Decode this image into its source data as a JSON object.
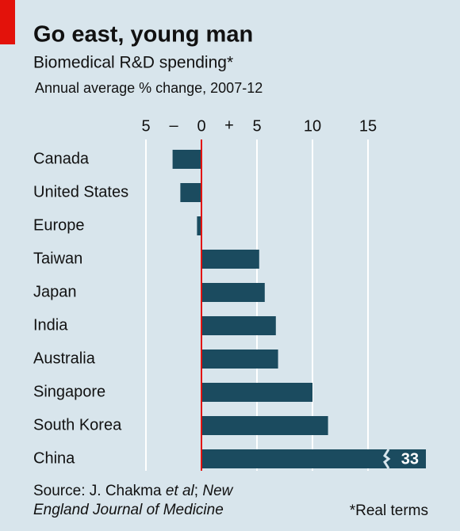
{
  "chart_data": {
    "type": "bar",
    "title": "Go east, young man",
    "subtitle": "Biomedical R&D spending*",
    "axis_label": "Annual average % change, 2007-12",
    "sign_labels": {
      "minus": "–",
      "plus": "+"
    },
    "categories": [
      "Canada",
      "United States",
      "Europe",
      "Taiwan",
      "Japan",
      "India",
      "Australia",
      "Singapore",
      "South Korea",
      "China"
    ],
    "values": [
      -2.6,
      -1.9,
      -0.4,
      5.2,
      5.7,
      6.7,
      6.9,
      10.0,
      11.4,
      33
    ],
    "value_labels": [
      null,
      null,
      null,
      null,
      null,
      null,
      null,
      null,
      null,
      "33"
    ],
    "color": "#1b4b5f",
    "zero_line_color": "#e3120b",
    "xlim": [
      -5,
      20
    ],
    "xticks": [
      {
        "value": -5,
        "label": "5"
      },
      0,
      5,
      10,
      15
    ],
    "grid": true,
    "source_prefix": "Source: J. Chakma",
    "source_authors": "et al",
    "source_sep": ";",
    "source_journal": "New England Journal of Medicine",
    "footnote": "*Real terms"
  }
}
